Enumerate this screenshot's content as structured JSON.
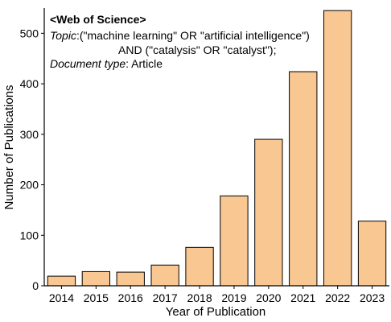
{
  "chart_data": {
    "type": "bar",
    "categories": [
      "2014",
      "2015",
      "2016",
      "2017",
      "2018",
      "2019",
      "2020",
      "2021",
      "2022",
      "2023"
    ],
    "values": [
      19,
      28,
      27,
      41,
      76,
      178,
      290,
      424,
      545,
      128
    ],
    "xlabel": "Year of Publication",
    "ylabel": "Number of Publications",
    "ylim": [
      0,
      550
    ],
    "yticks": [
      0,
      100,
      200,
      300,
      400,
      500
    ],
    "bar_color": "#f9c791",
    "bar_edge_color": "#000000",
    "grid": false,
    "annotation": {
      "heading": "<Web of Science>",
      "topic_key": "Topic",
      "topic_line1": ":(\"machine learning\" OR \"artificial intelligence\")",
      "topic_line2": "AND (\"catalysis\" OR \"catalyst\");",
      "doctype_key": "Document type",
      "doctype_value": ": Article"
    }
  }
}
